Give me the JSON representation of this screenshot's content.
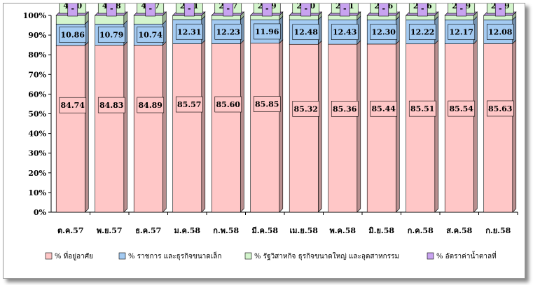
{
  "chart_data": {
    "type": "bar",
    "stacked": true,
    "percent_stacked": true,
    "categories": [
      "ต.ค.57",
      "พ.ย.57",
      "ธ.ค.57",
      "ม.ค.58",
      "ก.พ.58",
      "มี.ค.58",
      "เม.ย.58",
      "พ.ค.58",
      "มิ.ย.58",
      "ก.ค.58",
      "ส.ค.58",
      "ก.ย.58"
    ],
    "series": [
      {
        "name": "% ที่อยู่อาศัย",
        "color": "#FFC7C7",
        "values": [
          84.74,
          84.83,
          84.89,
          85.57,
          85.6,
          85.85,
          85.32,
          85.36,
          85.44,
          85.51,
          85.54,
          85.63
        ]
      },
      {
        "name": "% ราชการ และธุรกิจขนาดเล็ก",
        "color": "#A4CBF2",
        "values": [
          10.86,
          10.79,
          10.74,
          12.31,
          12.23,
          11.96,
          12.48,
          12.43,
          12.3,
          12.22,
          12.17,
          12.08
        ]
      },
      {
        "name": "% รัฐวิสาหกิจ ธุรกิจขนาดใหญ่ และอุตสาหกรรม",
        "color": "#D4F5CD",
        "values": [
          4.4,
          4.38,
          4.37,
          2.11,
          2.17,
          2.19,
          2.2,
          2.21,
          2.26,
          2.26,
          2.29,
          2.29
        ]
      },
      {
        "name": "% อัตราค่าน้ำตาลที่",
        "color": "#C8A3F0",
        "values": [
          null,
          null,
          null,
          null,
          null,
          null,
          null,
          null,
          null,
          null,
          null,
          null
        ],
        "labels": [
          "-",
          "-",
          "-",
          "-",
          "-",
          "-",
          "-",
          "-",
          "-",
          "-",
          "-",
          "-"
        ]
      }
    ],
    "ylim": [
      0,
      100
    ],
    "yticks": [
      "0%",
      "10%",
      "20%",
      "30%",
      "40%",
      "50%",
      "60%",
      "70%",
      "80%",
      "90%",
      "100%"
    ],
    "grid": false,
    "legend": "bottom"
  }
}
